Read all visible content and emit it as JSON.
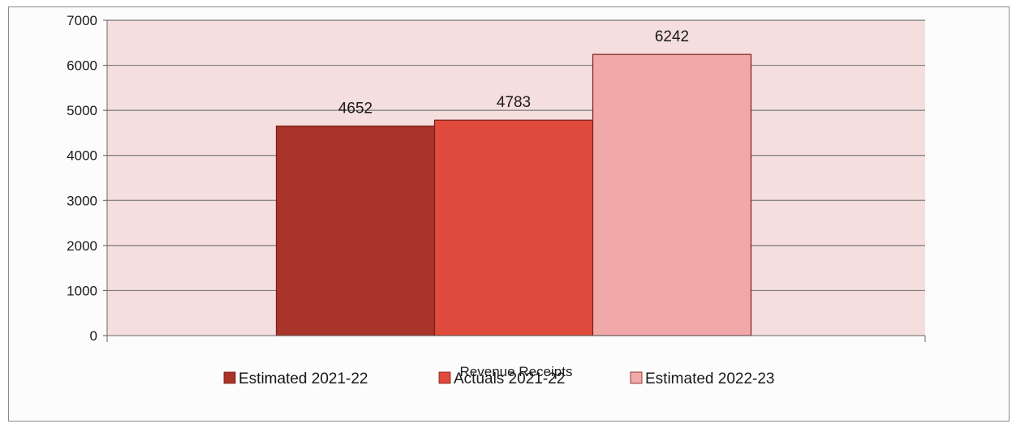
{
  "chart_data": {
    "type": "bar",
    "categories": [
      "Revenue Receipts"
    ],
    "series": [
      {
        "name": "Estimated 2021-22",
        "values": [
          4652
        ],
        "color": "#a8342a"
      },
      {
        "name": "Actuals 2021-22",
        "values": [
          4783
        ],
        "color": "#e04a3c"
      },
      {
        "name": "Estimated 2022-23",
        "values": [
          6242
        ],
        "color": "#f0a8a8"
      }
    ],
    "data_labels": [
      "4652",
      "4783",
      "6242"
    ],
    "ylim": [
      0,
      7000
    ],
    "yticks": [
      0,
      1000,
      2000,
      3000,
      4000,
      5000,
      6000,
      7000
    ],
    "grid": true,
    "legend_placement": "bottom",
    "plot_background": "#f5dede",
    "gridline_color": "#7a7a7a"
  }
}
